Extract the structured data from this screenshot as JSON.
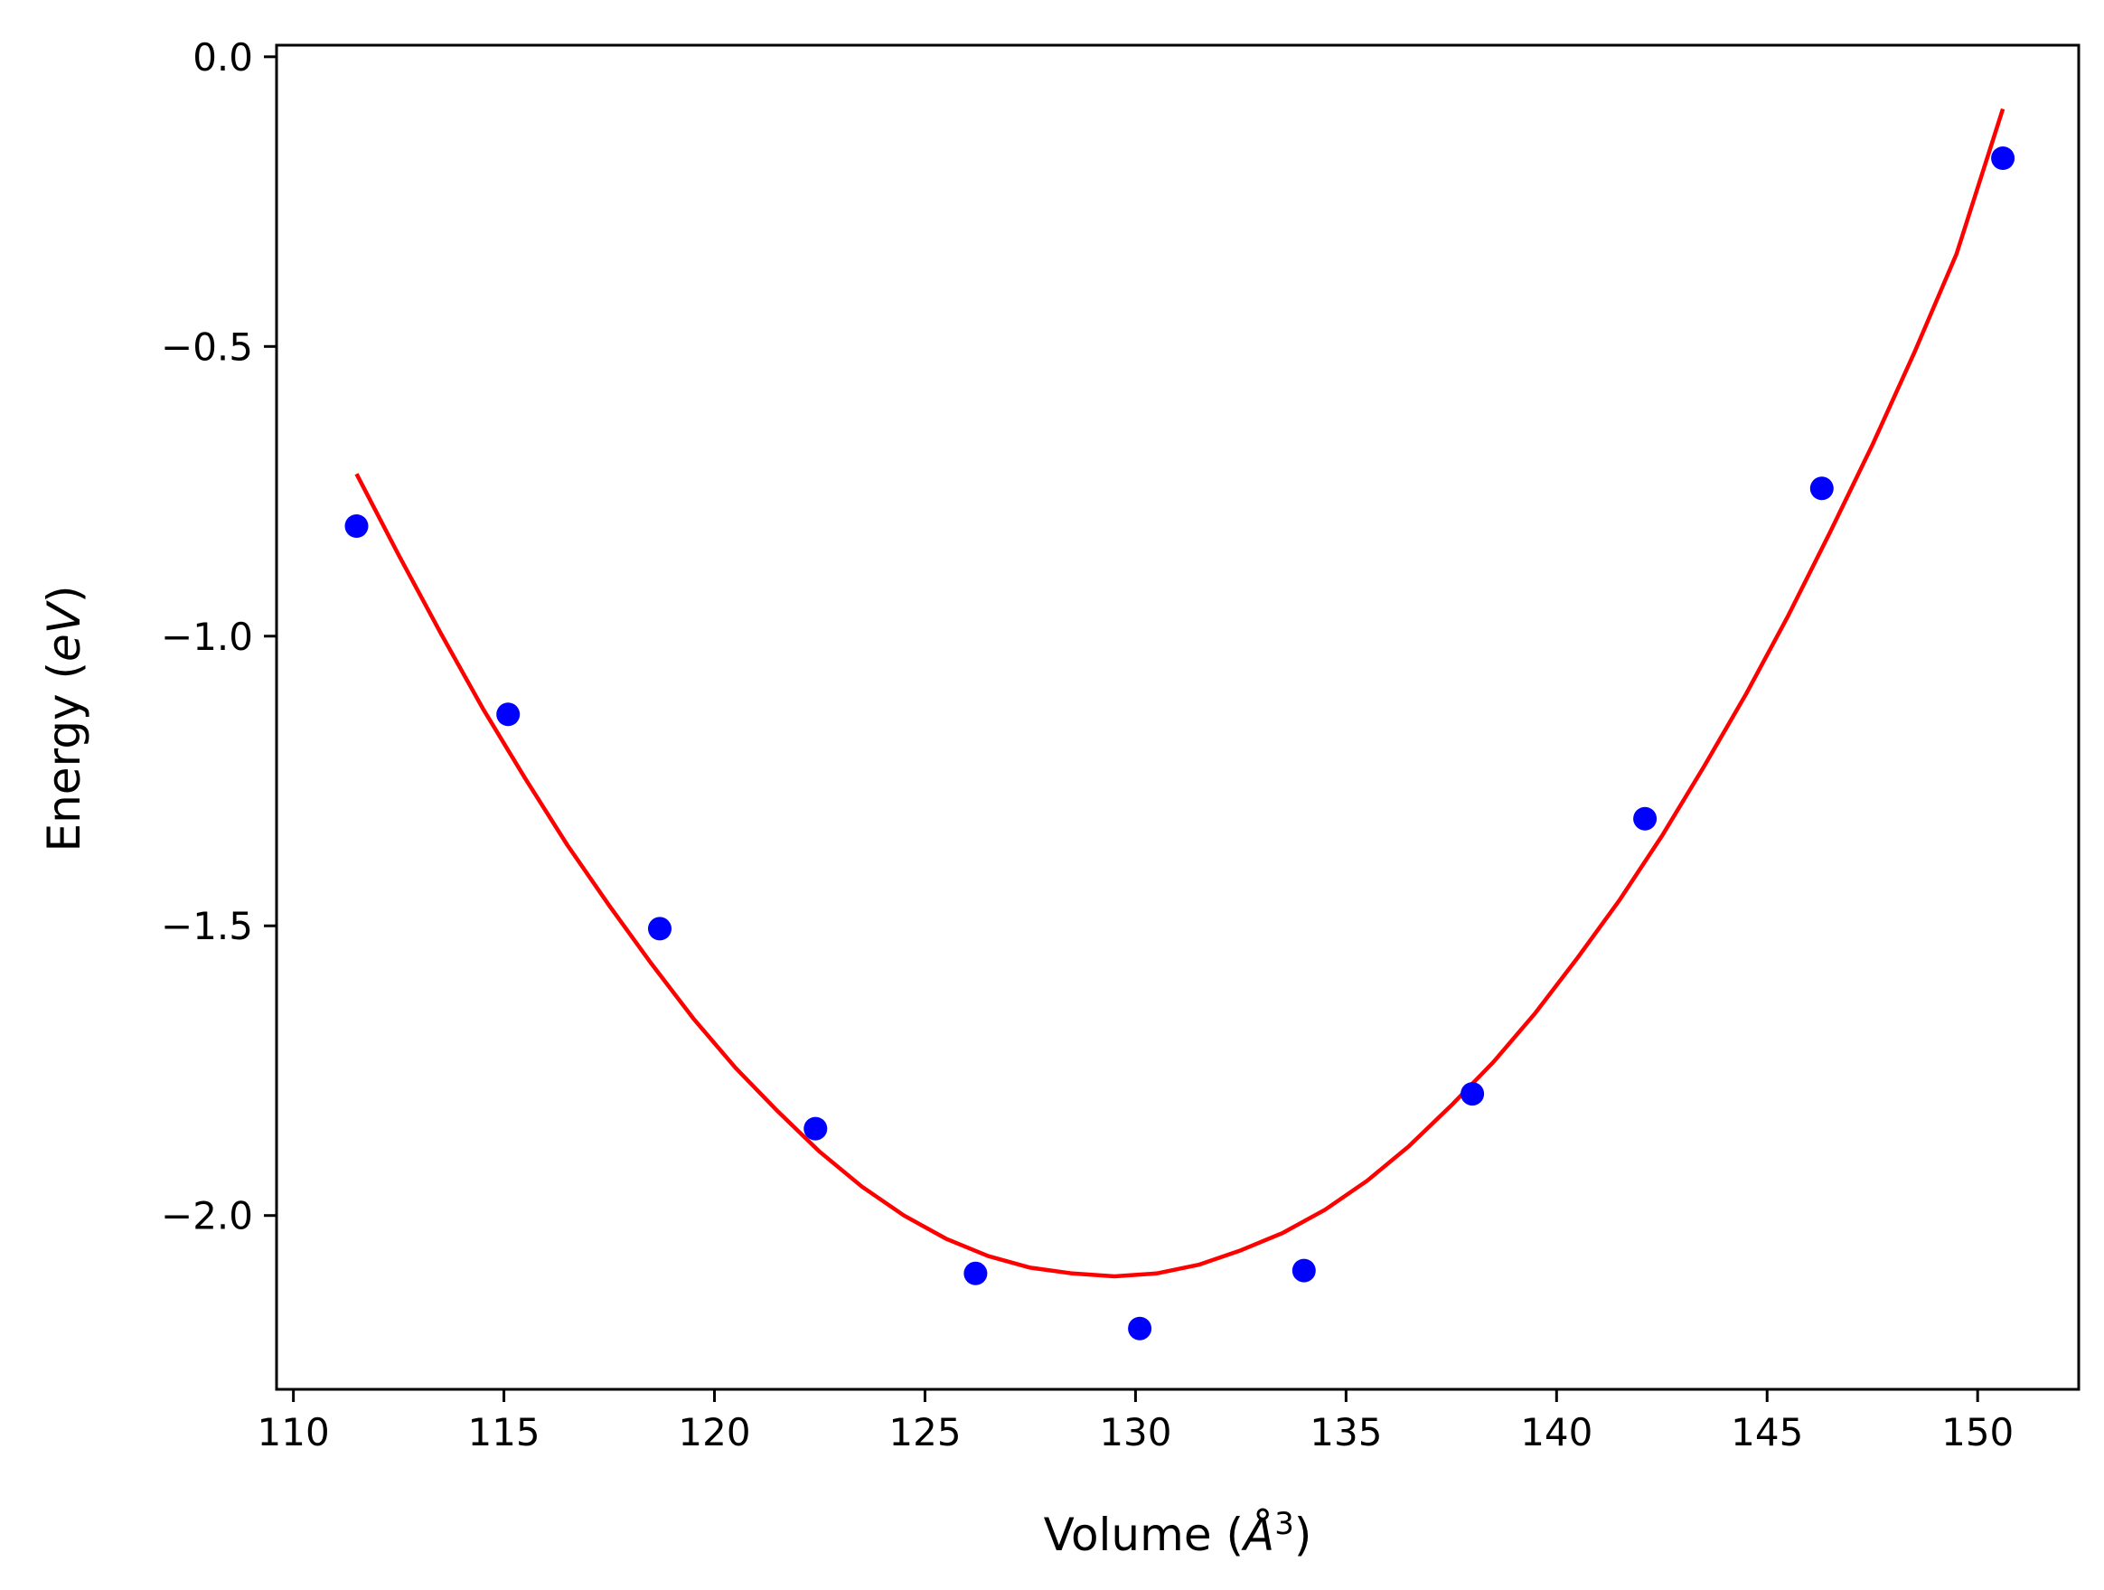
{
  "chart_data": {
    "type": "scatter",
    "title": "",
    "xlabel_text": "Volume (",
    "xlabel_unit": "Å",
    "xlabel_sup": "3",
    "xlabel_close": ")",
    "ylabel_text": "Energy (",
    "ylabel_unit": "eV",
    "ylabel_close": ")",
    "xlim": [
      109.6,
      152.4
    ],
    "ylim": [
      -2.3,
      0.02
    ],
    "grid": false,
    "x_ticks": [
      110,
      115,
      120,
      125,
      130,
      135,
      140,
      145,
      150
    ],
    "x_tick_labels": [
      "110",
      "115",
      "120",
      "125",
      "130",
      "135",
      "140",
      "145",
      "150"
    ],
    "y_ticks": [
      0.0,
      -0.5,
      -1.0,
      -1.5,
      -2.0
    ],
    "y_tick_labels": [
      "0.0",
      "−0.5",
      "−1.0",
      "−1.5",
      "−2.0"
    ],
    "colors": {
      "points": "#0000ff",
      "fit": "#ff0000",
      "axes": "#000000"
    },
    "series": [
      {
        "kind": "scatter",
        "x": [
          111.5,
          115.1,
          118.7,
          122.4,
          126.2,
          130.1,
          134.0,
          138.0,
          142.1,
          146.3,
          150.6
        ],
        "y": [
          -0.81,
          -1.135,
          -1.505,
          -1.85,
          -2.1,
          -2.195,
          -2.095,
          -1.79,
          -1.315,
          -0.745,
          -0.175
        ]
      },
      {
        "kind": "line",
        "x": [
          111.5,
          112.5,
          113.5,
          114.5,
          115.5,
          116.5,
          117.5,
          118.5,
          119.5,
          120.5,
          121.5,
          122.5,
          123.5,
          124.5,
          125.5,
          126.5,
          127.5,
          128.5,
          129.5,
          130.5,
          131.5,
          132.5,
          133.5,
          134.5,
          135.5,
          136.5,
          137.5,
          138.5,
          139.5,
          140.5,
          141.5,
          142.5,
          143.5,
          144.5,
          145.5,
          146.5,
          147.5,
          148.5,
          149.5,
          150.6
        ],
        "y": [
          -0.72,
          -0.86,
          -0.995,
          -1.125,
          -1.245,
          -1.36,
          -1.465,
          -1.565,
          -1.66,
          -1.745,
          -1.82,
          -1.89,
          -1.95,
          -2.0,
          -2.04,
          -2.07,
          -2.09,
          -2.1,
          -2.105,
          -2.1,
          -2.085,
          -2.06,
          -2.03,
          -1.99,
          -1.94,
          -1.88,
          -1.81,
          -1.735,
          -1.65,
          -1.555,
          -1.455,
          -1.345,
          -1.225,
          -1.1,
          -0.965,
          -0.82,
          -0.67,
          -0.51,
          -0.34,
          -0.09
        ]
      }
    ]
  }
}
